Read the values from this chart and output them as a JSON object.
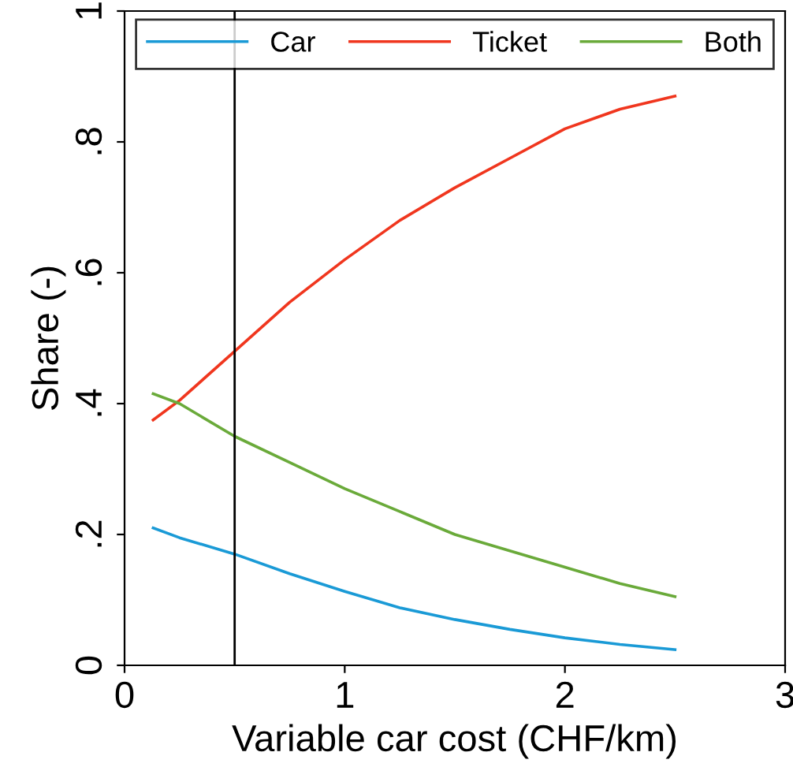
{
  "chart_data": {
    "type": "line",
    "xlabel": "Variable car cost (CHF/km)",
    "ylabel": "Share (-)",
    "x": [
      0.13,
      0.25,
      0.5,
      0.75,
      1,
      1.25,
      1.5,
      1.75,
      2,
      2.25,
      2.5
    ],
    "series": [
      {
        "name": "Car",
        "color": "#1a9ad6",
        "values": [
          0.21,
          0.195,
          0.17,
          0.14,
          0.113,
          0.088,
          0.07,
          0.055,
          0.042,
          0.032,
          0.024
        ]
      },
      {
        "name": "Ticket",
        "color": "#f0361e",
        "values": [
          0.375,
          0.405,
          0.48,
          0.555,
          0.62,
          0.68,
          0.73,
          0.775,
          0.82,
          0.85,
          0.87
        ]
      },
      {
        "name": "Both",
        "color": "#6aaa3a",
        "values": [
          0.415,
          0.4,
          0.35,
          0.31,
          0.27,
          0.235,
          0.2,
          0.175,
          0.15,
          0.125,
          0.105
        ]
      }
    ],
    "xlim": [
      0,
      3
    ],
    "xticks": [
      0,
      1,
      2,
      3
    ],
    "ylim": [
      0,
      1
    ],
    "yticks": [
      0,
      {
        "value": 0.2,
        "label": ".2"
      },
      {
        "value": 0.4,
        "label": ".4"
      },
      {
        "value": 0.6,
        "label": ".6"
      },
      {
        "value": 0.8,
        "label": ".8"
      },
      1
    ],
    "ref_lines": [
      {
        "axis": "x",
        "value": 0.5,
        "color": "#000000"
      }
    ],
    "grid": false,
    "legend": "top",
    "marker": "none",
    "line_style": "solid"
  }
}
